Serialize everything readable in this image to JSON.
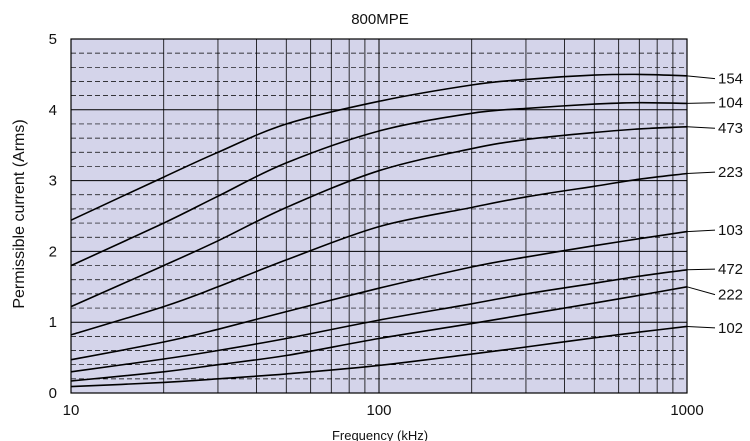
{
  "chart_data": {
    "type": "line",
    "title": "800MPE",
    "xlabel": "Frequency (kHz)",
    "ylabel": "Permissible current (Arms)",
    "x_scale": "log",
    "xlim": [
      10,
      1000
    ],
    "ylim": [
      0,
      5
    ],
    "x_ticks": [
      10,
      100,
      1000
    ],
    "y_ticks": [
      0,
      1,
      2,
      3,
      4,
      5
    ],
    "grid": true,
    "plot_background": "#d4d4ea",
    "line_color": "#000000",
    "series": [
      {
        "name": "154",
        "x": [
          10,
          20,
          30,
          50,
          100,
          200,
          300,
          500,
          700,
          1000
        ],
        "values": [
          2.44,
          3.05,
          3.4,
          3.8,
          4.12,
          4.35,
          4.43,
          4.49,
          4.5,
          4.48
        ]
      },
      {
        "name": "104",
        "x": [
          10,
          20,
          30,
          50,
          100,
          200,
          300,
          500,
          700,
          1000
        ],
        "values": [
          1.8,
          2.4,
          2.78,
          3.25,
          3.7,
          3.95,
          4.02,
          4.08,
          4.1,
          4.09
        ]
      },
      {
        "name": "473",
        "x": [
          10,
          20,
          30,
          50,
          100,
          200,
          300,
          500,
          700,
          1000
        ],
        "values": [
          1.22,
          1.8,
          2.15,
          2.62,
          3.14,
          3.45,
          3.58,
          3.68,
          3.73,
          3.76
        ]
      },
      {
        "name": "223",
        "x": [
          10,
          20,
          30,
          50,
          100,
          200,
          300,
          500,
          700,
          1000
        ],
        "values": [
          0.82,
          1.22,
          1.5,
          1.88,
          2.35,
          2.62,
          2.77,
          2.92,
          3.02,
          3.1
        ]
      },
      {
        "name": "103",
        "x": [
          10,
          20,
          30,
          50,
          100,
          200,
          300,
          500,
          700,
          1000
        ],
        "values": [
          0.47,
          0.72,
          0.9,
          1.15,
          1.48,
          1.78,
          1.92,
          2.08,
          2.18,
          2.28
        ]
      },
      {
        "name": "472",
        "x": [
          10,
          20,
          30,
          50,
          100,
          200,
          300,
          500,
          700,
          1000
        ],
        "values": [
          0.3,
          0.48,
          0.6,
          0.77,
          1.03,
          1.26,
          1.4,
          1.55,
          1.65,
          1.74
        ]
      },
      {
        "name": "222",
        "x": [
          10,
          20,
          30,
          50,
          100,
          200,
          300,
          500,
          700,
          1000
        ],
        "values": [
          0.17,
          0.3,
          0.4,
          0.53,
          0.77,
          0.98,
          1.11,
          1.27,
          1.38,
          1.5
        ]
      },
      {
        "name": "102",
        "x": [
          10,
          20,
          30,
          50,
          100,
          200,
          300,
          500,
          700,
          1000
        ],
        "values": [
          0.09,
          0.15,
          0.2,
          0.27,
          0.39,
          0.55,
          0.65,
          0.78,
          0.86,
          0.94
        ]
      }
    ],
    "series_label_y": [
      4.44,
      4.1,
      3.74,
      3.12,
      2.3,
      1.75,
      1.39,
      0.92
    ]
  }
}
